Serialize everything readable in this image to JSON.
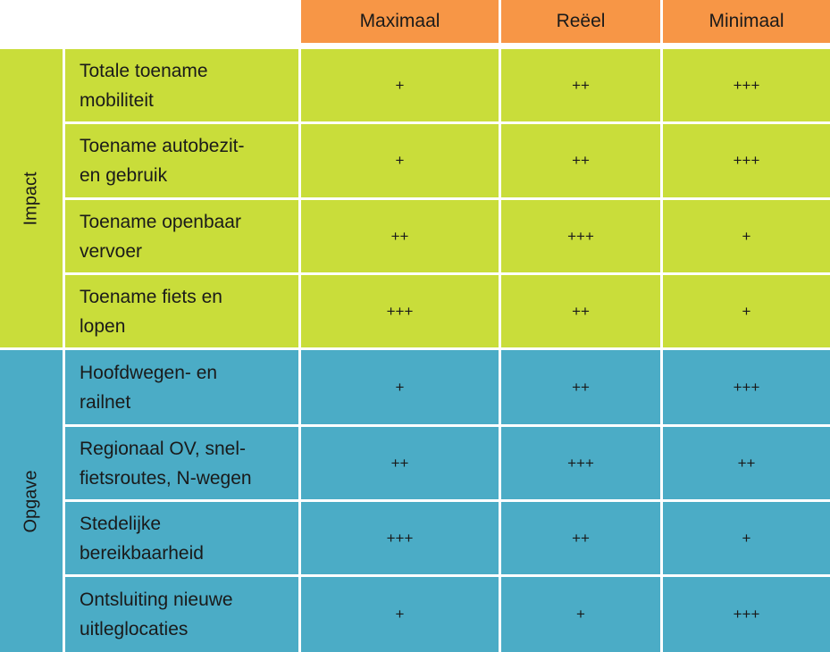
{
  "columns": [
    "Maximaal",
    "Reëel",
    "Minimaal"
  ],
  "groups": [
    {
      "name": "Impact",
      "color": "#c9dd3a",
      "rows": [
        {
          "label_lines": [
            "Totale toename",
            "mobiliteit"
          ],
          "values": [
            "+",
            "++",
            "+++"
          ]
        },
        {
          "label_lines": [
            "Toename autobezit-",
            "en gebruik"
          ],
          "values": [
            "+",
            "++",
            "+++"
          ]
        },
        {
          "label_lines": [
            "Toename openbaar",
            "vervoer"
          ],
          "values": [
            "++",
            "+++",
            "+"
          ]
        },
        {
          "label_lines": [
            "Toename fiets en",
            "lopen"
          ],
          "values": [
            "+++",
            "++",
            "+"
          ]
        }
      ]
    },
    {
      "name": "Opgave",
      "color": "#4bacc6",
      "rows": [
        {
          "label_lines": [
            "Hoofdwegen- en",
            "railnet"
          ],
          "values": [
            "+",
            "++",
            "+++"
          ]
        },
        {
          "label_lines": [
            "Regionaal OV, snel-",
            "fietsroutes, N-wegen"
          ],
          "values": [
            "++",
            "+++",
            "++"
          ]
        },
        {
          "label_lines": [
            "Stedelijke",
            "bereikbaarheid"
          ],
          "values": [
            "+++",
            "++",
            "+"
          ]
        },
        {
          "label_lines": [
            "Ontsluiting nieuwe",
            "uitleglocaties"
          ],
          "values": [
            "+",
            "+",
            "+++"
          ]
        }
      ]
    }
  ],
  "header_color": "#f79646"
}
